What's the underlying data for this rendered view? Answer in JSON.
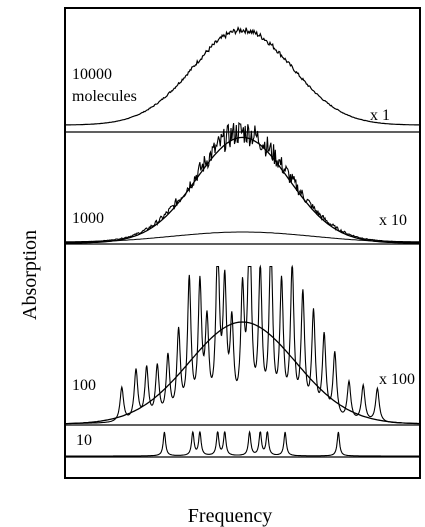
{
  "chart_data": {
    "type": "line",
    "xlabel": "Frequency",
    "ylabel": "Absorption",
    "grid": false,
    "axis_ticks": false,
    "panels": [
      {
        "label": "10000\nmolecules",
        "scale": "x 1",
        "kind": "broad",
        "center": 0.5,
        "height": 0.75,
        "noise": 0.03
      },
      {
        "label": "1000",
        "scale": "x 10",
        "kind": "broad",
        "center": 0.5,
        "height": 0.78,
        "noise": 0.06,
        "overlay": "gaussian fit",
        "reference": "10000 molecules spectrum x 1"
      },
      {
        "label": "100",
        "scale": "x 100",
        "kind": "lines",
        "line_positions": [
          0.16,
          0.2,
          0.23,
          0.26,
          0.29,
          0.32,
          0.35,
          0.38,
          0.4,
          0.43,
          0.45,
          0.47,
          0.5,
          0.52,
          0.55,
          0.58,
          0.61,
          0.64,
          0.67,
          0.7,
          0.73,
          0.76,
          0.8,
          0.84,
          0.88
        ],
        "overlay": "gaussian fit"
      },
      {
        "label": "10",
        "scale": "",
        "kind": "lines",
        "line_positions": [
          0.28,
          0.36,
          0.38,
          0.43,
          0.45,
          0.52,
          0.55,
          0.57,
          0.62,
          0.77
        ]
      }
    ]
  }
}
